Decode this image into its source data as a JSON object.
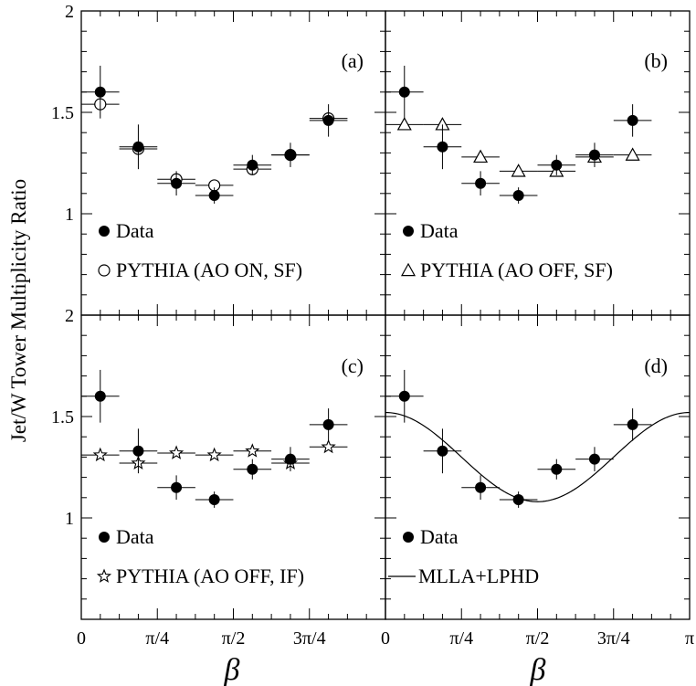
{
  "figure": {
    "ylabel": "Jet/W Tower Multiplicity Ratio",
    "xlabel": "β"
  },
  "chart_data": [
    {
      "type": "scatter",
      "panel_label": "(a)",
      "xlim": [
        0,
        3.14159
      ],
      "ylim": [
        0.5,
        2
      ],
      "x_ticks": [
        "0",
        "π/4",
        "π/2",
        "3π/4",
        "π"
      ],
      "y_ticks": [
        "1",
        "1.5",
        "2"
      ],
      "series": [
        {
          "name": "Data",
          "marker": "filled-circle",
          "x": [
            0.196,
            0.589,
            0.982,
            1.374,
            1.767,
            2.16,
            2.553
          ],
          "y": [
            1.6,
            1.33,
            1.15,
            1.09,
            1.24,
            1.29,
            1.46
          ],
          "yerr": [
            0.13,
            0.11,
            0.06,
            0.04,
            0.05,
            0.06,
            0.08
          ]
        },
        {
          "name": "PYTHIA (AO ON, SF)",
          "marker": "open-circle",
          "x": [
            0.196,
            0.589,
            0.982,
            1.374,
            1.767,
            2.16,
            2.553
          ],
          "y": [
            1.54,
            1.32,
            1.17,
            1.14,
            1.22,
            1.29,
            1.47
          ]
        }
      ]
    },
    {
      "type": "scatter",
      "panel_label": "(b)",
      "xlim": [
        0,
        3.14159
      ],
      "ylim": [
        0.5,
        2
      ],
      "x_ticks": [
        "0",
        "π/4",
        "π/2",
        "3π/4",
        "π"
      ],
      "y_ticks": [
        "1",
        "1.5",
        "2"
      ],
      "series": [
        {
          "name": "Data",
          "marker": "filled-circle",
          "x": [
            0.196,
            0.589,
            0.982,
            1.374,
            1.767,
            2.16,
            2.553
          ],
          "y": [
            1.6,
            1.33,
            1.15,
            1.09,
            1.24,
            1.29,
            1.46
          ],
          "yerr": [
            0.13,
            0.11,
            0.06,
            0.04,
            0.05,
            0.06,
            0.08
          ]
        },
        {
          "name": "PYTHIA (AO OFF, SF)",
          "marker": "open-triangle",
          "x": [
            0.196,
            0.589,
            0.982,
            1.374,
            1.767,
            2.16,
            2.553
          ],
          "y": [
            1.44,
            1.44,
            1.28,
            1.21,
            1.21,
            1.28,
            1.29
          ]
        }
      ]
    },
    {
      "type": "scatter",
      "panel_label": "(c)",
      "xlim": [
        0,
        3.14159
      ],
      "ylim": [
        0.5,
        2
      ],
      "x_ticks": [
        "0",
        "π/4",
        "π/2",
        "3π/4",
        "π"
      ],
      "y_ticks": [
        "1",
        "1.5",
        "2"
      ],
      "series": [
        {
          "name": "Data",
          "marker": "filled-circle",
          "x": [
            0.196,
            0.589,
            0.982,
            1.374,
            1.767,
            2.16,
            2.553
          ],
          "y": [
            1.6,
            1.33,
            1.15,
            1.09,
            1.24,
            1.29,
            1.46
          ],
          "yerr": [
            0.13,
            0.11,
            0.06,
            0.04,
            0.05,
            0.06,
            0.08
          ]
        },
        {
          "name": "PYTHIA (AO OFF, IF)",
          "marker": "open-star",
          "x": [
            0.196,
            0.589,
            0.982,
            1.374,
            1.767,
            2.16,
            2.553
          ],
          "y": [
            1.31,
            1.27,
            1.32,
            1.31,
            1.33,
            1.27,
            1.35
          ]
        }
      ]
    },
    {
      "type": "scatter",
      "panel_label": "(d)",
      "xlim": [
        0,
        3.14159
      ],
      "ylim": [
        0.5,
        2
      ],
      "x_ticks": [
        "0",
        "π/4",
        "π/2",
        "3π/4",
        "π"
      ],
      "y_ticks": [
        "1",
        "1.5",
        "2"
      ],
      "series": [
        {
          "name": "Data",
          "marker": "filled-circle",
          "x": [
            0.196,
            0.589,
            0.982,
            1.374,
            1.767,
            2.16,
            2.553
          ],
          "y": [
            1.6,
            1.33,
            1.15,
            1.09,
            1.24,
            1.29,
            1.46
          ],
          "yerr": [
            0.13,
            0.11,
            0.06,
            0.04,
            0.05,
            0.06,
            0.08
          ]
        },
        {
          "name": "MLLA+LPHD",
          "marker": "line",
          "curve": {
            "mean": 1.3,
            "amplitude": 0.22,
            "period": 3.14159
          }
        }
      ]
    }
  ]
}
